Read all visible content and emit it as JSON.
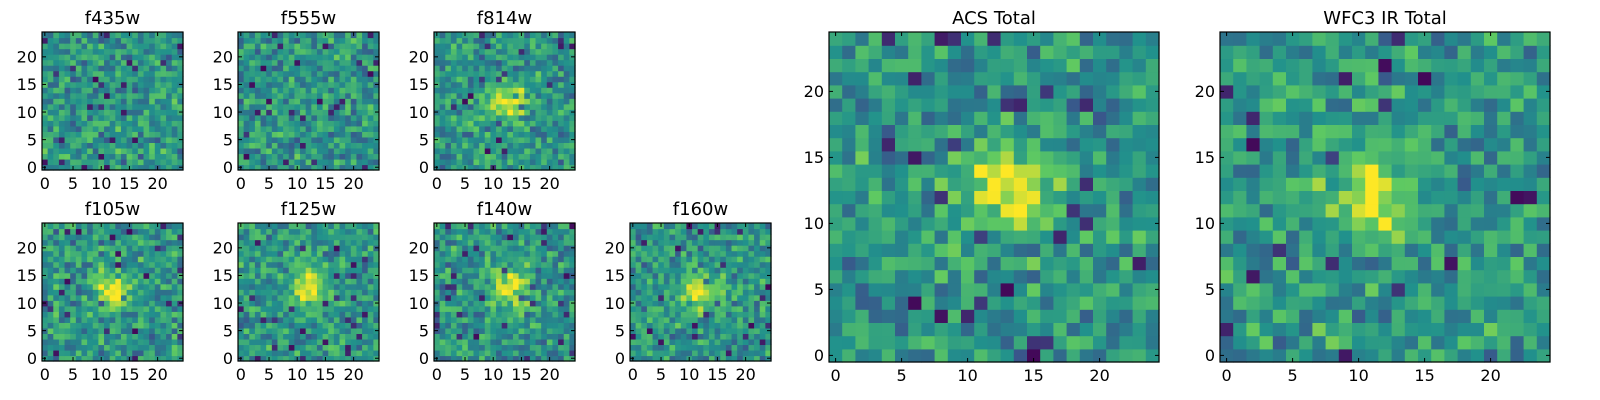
{
  "colormap": "viridis",
  "colormap_stops": [
    "#440154",
    "#3b528b",
    "#21918c",
    "#5ec962",
    "#fde725"
  ],
  "grid": false,
  "chart_data": [
    {
      "type": "heatmap",
      "title": "f435w",
      "nx": 25,
      "ny": 25,
      "xlim": [
        -0.5,
        24.5
      ],
      "ylim": [
        -0.5,
        24.5
      ],
      "xticks": [
        0,
        5,
        10,
        15,
        20
      ],
      "yticks": [
        0,
        5,
        10,
        15,
        20
      ],
      "source_center": null,
      "description_seed": 11
    },
    {
      "type": "heatmap",
      "title": "f555w",
      "nx": 25,
      "ny": 25,
      "xlim": [
        -0.5,
        24.5
      ],
      "ylim": [
        -0.5,
        24.5
      ],
      "xticks": [
        0,
        5,
        10,
        15,
        20
      ],
      "yticks": [
        0,
        5,
        10,
        15,
        20
      ],
      "source_center": null,
      "description_seed": 23
    },
    {
      "type": "heatmap",
      "title": "f814w",
      "nx": 25,
      "ny": 25,
      "xlim": [
        -0.5,
        24.5
      ],
      "ylim": [
        -0.5,
        24.5
      ],
      "xticks": [
        0,
        5,
        10,
        15,
        20
      ],
      "yticks": [
        0,
        5,
        10,
        15,
        20
      ],
      "source_center": [
        13,
        12
      ],
      "description_seed": 37
    },
    {
      "type": "heatmap",
      "title": "f105w",
      "nx": 25,
      "ny": 25,
      "xlim": [
        -0.5,
        24.5
      ],
      "ylim": [
        -0.5,
        24.5
      ],
      "xticks": [
        0,
        5,
        10,
        15,
        20
      ],
      "yticks": [
        0,
        5,
        10,
        15,
        20
      ],
      "source_center": [
        12,
        12
      ],
      "description_seed": 41
    },
    {
      "type": "heatmap",
      "title": "f125w",
      "nx": 25,
      "ny": 25,
      "xlim": [
        -0.5,
        24.5
      ],
      "ylim": [
        -0.5,
        24.5
      ],
      "xticks": [
        0,
        5,
        10,
        15,
        20
      ],
      "yticks": [
        0,
        5,
        10,
        15,
        20
      ],
      "source_center": [
        12,
        13
      ],
      "description_seed": 53
    },
    {
      "type": "heatmap",
      "title": "f140w",
      "nx": 25,
      "ny": 25,
      "xlim": [
        -0.5,
        24.5
      ],
      "ylim": [
        -0.5,
        24.5
      ],
      "xticks": [
        0,
        5,
        10,
        15,
        20
      ],
      "yticks": [
        0,
        5,
        10,
        15,
        20
      ],
      "source_center": [
        13,
        13
      ],
      "description_seed": 67
    },
    {
      "type": "heatmap",
      "title": "f160w",
      "nx": 25,
      "ny": 25,
      "xlim": [
        -0.5,
        24.5
      ],
      "ylim": [
        -0.5,
        24.5
      ],
      "xticks": [
        0,
        5,
        10,
        15,
        20
      ],
      "yticks": [
        0,
        5,
        10,
        15,
        20
      ],
      "source_center": [
        12,
        12
      ],
      "description_seed": 79
    },
    {
      "type": "heatmap",
      "title": "ACS Total",
      "nx": 25,
      "ny": 25,
      "xlim": [
        -0.5,
        24.5
      ],
      "ylim": [
        -0.5,
        24.5
      ],
      "xticks": [
        0,
        5,
        10,
        15,
        20
      ],
      "yticks": [
        0,
        5,
        10,
        15,
        20
      ],
      "source_center": [
        13,
        13
      ],
      "description_seed": 83
    },
    {
      "type": "heatmap",
      "title": "WFC3 IR Total",
      "nx": 25,
      "ny": 25,
      "xlim": [
        -0.5,
        24.5
      ],
      "ylim": [
        -0.5,
        24.5
      ],
      "xticks": [
        0,
        5,
        10,
        15,
        20
      ],
      "yticks": [
        0,
        5,
        10,
        15,
        20
      ],
      "source_center": [
        11,
        12
      ],
      "description_seed": 97
    }
  ]
}
